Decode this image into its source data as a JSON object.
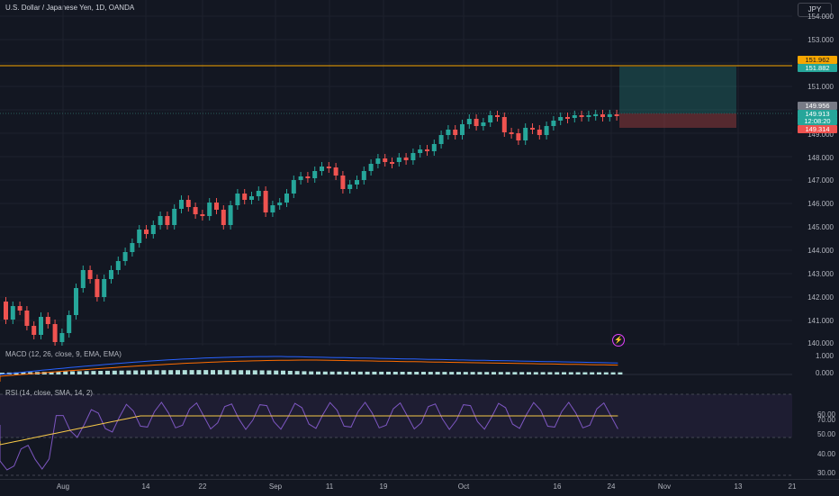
{
  "header": {
    "title": "U.S. Dollar / Japanese Yen, 1D, OANDA",
    "currency_badge": "JPY"
  },
  "price_axis": {
    "ticks": [
      "154.000",
      "153.000",
      "151.000",
      "150.000",
      "149.000",
      "148.000",
      "147.000",
      "146.000",
      "145.000",
      "144.000",
      "143.000",
      "142.000",
      "141.000",
      "140.000"
    ],
    "alert_price": "151.962",
    "target_price": "151.882",
    "gray_price": "149.956",
    "last_price": "149.913",
    "countdown": "12:08:20",
    "stop_price": "149.314"
  },
  "macd": {
    "label": "MACD (12, 26, close, 9, EMA, EMA)",
    "ticks": [
      "1.000",
      "0.000"
    ]
  },
  "rsi": {
    "label": "RSI (14, close, SMA, 14, 2)",
    "ticks": [
      "70.00",
      "60.00",
      "50.00",
      "40.00",
      "30.00"
    ]
  },
  "time_axis": {
    "labels": [
      "Aug",
      "14",
      "22",
      "Sep",
      "11",
      "19",
      "Oct",
      "16",
      "24",
      "Nov",
      "13",
      "21"
    ]
  },
  "colors": {
    "up": "#26a69a",
    "down": "#ef5350",
    "alert": "#f7a600",
    "bg": "#131722"
  },
  "icons": {
    "replay": "lightning-icon"
  }
}
